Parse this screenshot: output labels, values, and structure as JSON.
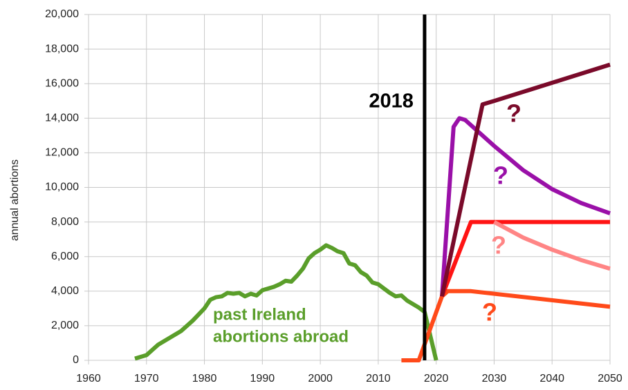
{
  "chart_data": {
    "type": "line",
    "ylabel": "annual abortions",
    "xlim": [
      1960,
      2050
    ],
    "xticks": [
      1960,
      1970,
      1980,
      1990,
      2000,
      2010,
      2020,
      2030,
      2040,
      2050
    ],
    "ylim": [
      0,
      20000
    ],
    "yticks": [
      0,
      {
        "value": 2000,
        "label": "2,000"
      },
      {
        "value": 4000,
        "label": "4,000"
      },
      {
        "value": 6000,
        "label": "6,000"
      },
      {
        "value": 8000,
        "label": "8,000"
      },
      {
        "value": 10000,
        "label": "10,000"
      },
      {
        "value": 12000,
        "label": "12,000"
      },
      {
        "value": 14000,
        "label": "14,000"
      },
      {
        "value": 16000,
        "label": "16,000"
      },
      {
        "value": 18000,
        "label": "18,000"
      },
      {
        "value": 20000,
        "label": "20,000"
      }
    ],
    "grid": true,
    "marker": 2018,
    "series": [
      {
        "color": "#5a9e2a",
        "x": [
          1968,
          1970,
          1972,
          1974,
          1976,
          1978,
          1980,
          1981,
          1982,
          1983,
          1984,
          1985,
          1986,
          1987,
          1988,
          1989,
          1990,
          1991,
          1992,
          1993,
          1994,
          1995,
          1996,
          1997,
          1998,
          1999,
          2000,
          2001,
          2002,
          2003,
          2004,
          2005,
          2006,
          2007,
          2008,
          2009,
          2010,
          2011,
          2012,
          2013,
          2014,
          2015,
          2016,
          2017,
          2018,
          2019,
          2020
        ],
        "values": [
          100,
          300,
          900,
          1300,
          1700,
          2300,
          3000,
          3500,
          3650,
          3700,
          3900,
          3850,
          3900,
          3700,
          3850,
          3750,
          4050,
          4150,
          4250,
          4400,
          4600,
          4550,
          4900,
          5300,
          5900,
          6200,
          6400,
          6650,
          6500,
          6300,
          6200,
          5600,
          5500,
          5100,
          4900,
          4500,
          4400,
          4150,
          3900,
          3700,
          3750,
          3450,
          3250,
          3050,
          2800,
          1400,
          0
        ]
      },
      {
        "color": "#ff4a1a",
        "x": [
          2014,
          2017,
          2021,
          2022,
          2026,
          2050
        ],
        "values": [
          0,
          0,
          3700,
          4000,
          4000,
          3100
        ]
      },
      {
        "color": "#ff1414",
        "x": [
          2021,
          2026,
          2050
        ],
        "values": [
          3700,
          8000,
          8000
        ]
      },
      {
        "color": "#ff8585",
        "x": [
          2030,
          2035,
          2040,
          2045,
          2050
        ],
        "values": [
          8000,
          7100,
          6400,
          5800,
          5300
        ]
      },
      {
        "color": "#9a10a8",
        "x": [
          2021,
          2023,
          2024,
          2025,
          2030,
          2035,
          2040,
          2045,
          2050
        ],
        "values": [
          3700,
          13500,
          14000,
          13900,
          12400,
          11000,
          9900,
          9100,
          8500
        ]
      },
      {
        "color": "#7a0a2a",
        "x": [
          2021,
          2028,
          2030,
          2050
        ],
        "values": [
          3700,
          14800,
          15000,
          17100
        ]
      }
    ],
    "annotations": [
      {
        "text": "past Ireland",
        "color": "#5a9e2a"
      },
      {
        "text": "abortions abroad",
        "color": "#5a9e2a"
      },
      {
        "text": "?",
        "color": "#7a0a2a"
      },
      {
        "text": "?",
        "color": "#9a10a8"
      },
      {
        "text": "?",
        "color": "#ff8585"
      },
      {
        "text": "?",
        "color": "#ff4a1a"
      }
    ]
  }
}
